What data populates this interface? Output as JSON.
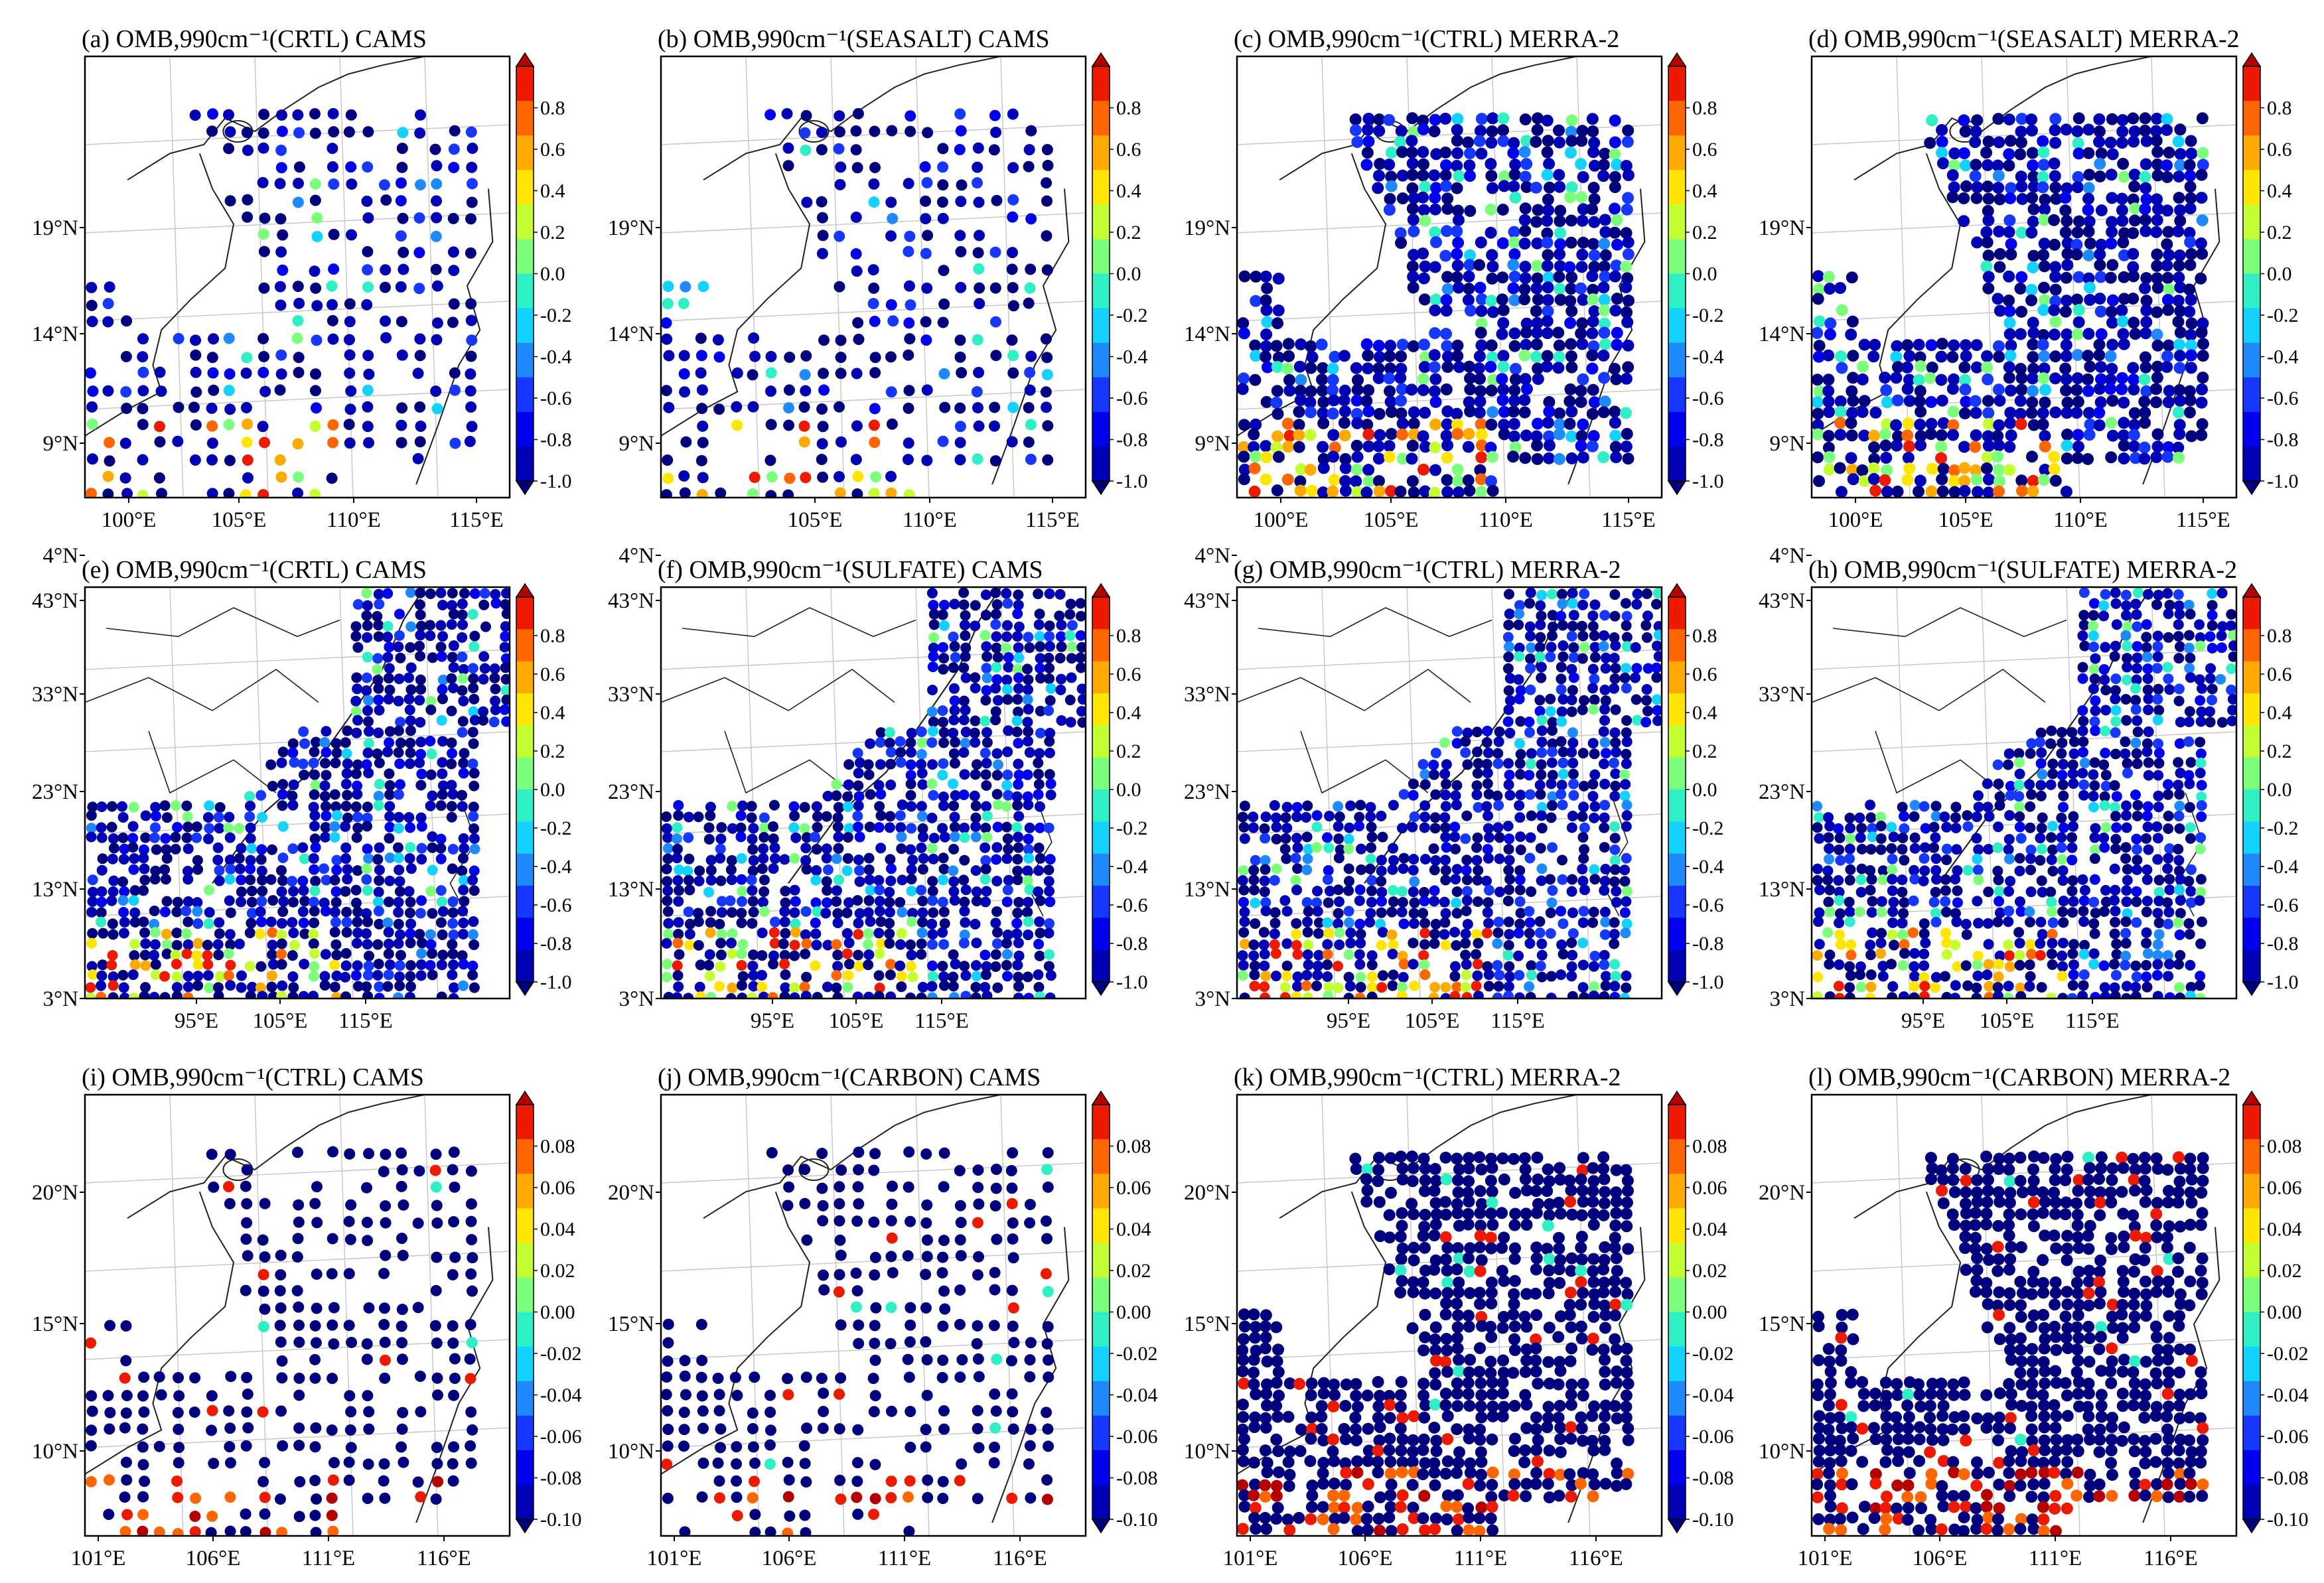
{
  "colorbar_colors": [
    "#00007f",
    "#0000b5",
    "#0000ee",
    "#1537ff",
    "#1f8aff",
    "#14d2ff",
    "#2ef0c4",
    "#7cff7a",
    "#c4ff33",
    "#ffe500",
    "#ffaa00",
    "#ff6600",
    "#ee1a00",
    "#b50000"
  ],
  "rows": [
    {
      "cb_ticks": [
        "0.8",
        "0.6",
        "0.4",
        "0.2",
        "0.0",
        "-0.2",
        "-0.4",
        "-0.6",
        "-0.8",
        "-1.0"
      ],
      "lat_labels": [
        "19°N",
        "14°N",
        "9°N",
        "4°N"
      ],
      "lon_labels": [
        "100°E",
        "105°E",
        "110°E",
        "115°E"
      ],
      "panels": [
        {
          "title": "(a) OMB,990cm⁻¹(CRTL) CAMS",
          "sampling": "sparse"
        },
        {
          "title": "(b) OMB,990cm⁻¹(SEASALT) CAMS",
          "sampling": "sparse",
          "hide_edge_ticks": true
        },
        {
          "title": "(c) OMB,990cm⁻¹(CTRL) MERRA-2",
          "sampling": "dense"
        },
        {
          "title": "(d) OMB,990cm⁻¹(SEASALT) MERRA-2",
          "sampling": "dense"
        }
      ]
    },
    {
      "cb_ticks": [
        "0.8",
        "0.6",
        "0.4",
        "0.2",
        "0.0",
        "-0.2",
        "-0.4",
        "-0.6",
        "-0.8",
        "-1.0"
      ],
      "lat_labels": [
        "43°N",
        "33°N",
        "23°N",
        "13°N",
        "3°N"
      ],
      "lon_labels": [
        "95°E",
        "105°E",
        "115°E"
      ],
      "panels": [
        {
          "title": "(e) OMB,990cm⁻¹(CRTL) CAMS",
          "sampling": "wide"
        },
        {
          "title": "(f) OMB,990cm⁻¹(SULFATE) CAMS",
          "sampling": "wide"
        },
        {
          "title": "(g) OMB,990cm⁻¹(CTRL) MERRA-2",
          "sampling": "wide"
        },
        {
          "title": "(h) OMB,990cm⁻¹(SULFATE) MERRA-2",
          "sampling": "wide"
        }
      ]
    },
    {
      "cb_ticks": [
        "0.08",
        "0.06",
        "0.04",
        "0.02",
        "0.00",
        "-0.02",
        "-0.04",
        "-0.06",
        "-0.08",
        "-0.10"
      ],
      "lat_labels": [
        "20°N",
        "15°N",
        "10°N"
      ],
      "lon_labels": [
        "101°E",
        "106°E",
        "111°E",
        "116°E"
      ],
      "panels": [
        {
          "title": "(i) OMB,990cm⁻¹(CTRL) CAMS",
          "sampling": "sparse"
        },
        {
          "title": "(j) OMB,990cm⁻¹(CARBON) CAMS",
          "sampling": "sparse"
        },
        {
          "title": "(k) OMB,990cm⁻¹(CTRL) MERRA-2",
          "sampling": "dense"
        },
        {
          "title": "(l) OMB,990cm⁻¹(CARBON) MERRA-2",
          "sampling": "dense"
        }
      ]
    }
  ]
}
